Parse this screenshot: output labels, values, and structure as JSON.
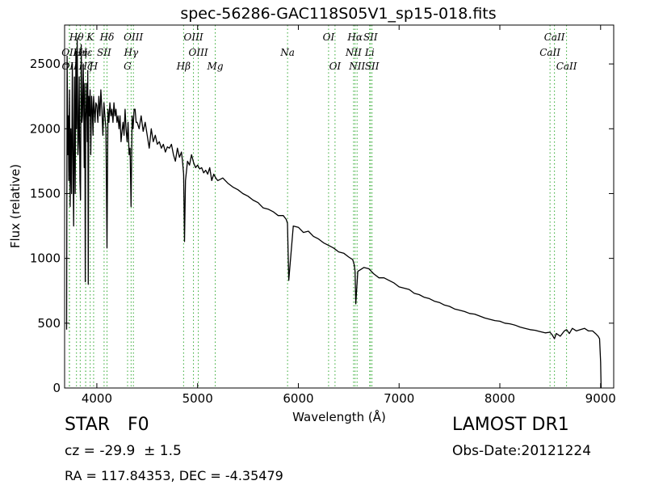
{
  "chart_data": {
    "type": "line",
    "title": "spec-56286-GAC118S05V1_sp15-018.fits",
    "xlabel": "Wavelength (Å)",
    "ylabel": "Flux (relative)",
    "xlim": [
      3680,
      9130
    ],
    "ylim": [
      0,
      2800
    ],
    "xticks": [
      4000,
      5000,
      6000,
      7000,
      8000,
      9000
    ],
    "yticks": [
      0,
      500,
      1000,
      1500,
      2000,
      2500
    ],
    "grid": false,
    "line_color": "#000000",
    "marker_color": "#33aa33",
    "series": [
      {
        "x": [
          3700,
          3705,
          3712,
          3718,
          3722,
          3728,
          3735,
          3742,
          3750,
          3757,
          3763,
          3770,
          3778,
          3785,
          3792,
          3798,
          3805,
          3812,
          3818,
          3825,
          3832,
          3838,
          3845,
          3852,
          3858,
          3865,
          3870,
          3875,
          3880,
          3885,
          3889,
          3895,
          3900,
          3905,
          3910,
          3915,
          3920,
          3926,
          3933,
          3940,
          3948,
          3955,
          3962,
          3968,
          3975,
          3982,
          3990,
          4000,
          4010,
          4020,
          4030,
          4040,
          4050,
          4060,
          4070,
          4080,
          4090,
          4101,
          4110,
          4120,
          4130,
          4140,
          4150,
          4160,
          4170,
          4180,
          4190,
          4200,
          4210,
          4220,
          4230,
          4240,
          4250,
          4260,
          4270,
          4280,
          4290,
          4300,
          4310,
          4320,
          4330,
          4340,
          4350,
          4360,
          4370,
          4380,
          4390,
          4400,
          4420,
          4440,
          4460,
          4480,
          4500,
          4520,
          4540,
          4560,
          4580,
          4600,
          4620,
          4640,
          4660,
          4680,
          4700,
          4720,
          4740,
          4760,
          4780,
          4800,
          4820,
          4840,
          4850,
          4861,
          4870,
          4880,
          4900,
          4920,
          4940,
          4960,
          4980,
          5000,
          5020,
          5040,
          5060,
          5080,
          5100,
          5120,
          5140,
          5160,
          5180,
          5200,
          5250,
          5300,
          5350,
          5400,
          5450,
          5500,
          5550,
          5600,
          5650,
          5700,
          5750,
          5800,
          5850,
          5880,
          5892,
          5905,
          5950,
          6000,
          6050,
          6100,
          6150,
          6200,
          6250,
          6300,
          6350,
          6400,
          6450,
          6500,
          6540,
          6555,
          6563,
          6570,
          6590,
          6650,
          6700,
          6750,
          6800,
          6850,
          6900,
          6950,
          7000,
          7050,
          7100,
          7150,
          7200,
          7250,
          7300,
          7350,
          7400,
          7450,
          7500,
          7550,
          7600,
          7650,
          7700,
          7750,
          7800,
          7850,
          7900,
          7950,
          8000,
          8050,
          8100,
          8150,
          8200,
          8250,
          8300,
          8350,
          8400,
          8450,
          8498,
          8520,
          8542,
          8560,
          8600,
          8640,
          8662,
          8690,
          8720,
          8760,
          8800,
          8840,
          8880,
          8920,
          8950,
          8975,
          8990,
          9000,
          9005
        ],
        "y": [
          450,
          2560,
          1800,
          2100,
          1600,
          2300,
          1400,
          2000,
          1500,
          2500,
          1800,
          1250,
          2400,
          1500,
          2600,
          2000,
          2700,
          1800,
          1900,
          2400,
          1600,
          1450,
          2650,
          2050,
          2100,
          2500,
          2200,
          1700,
          2350,
          820,
          2050,
          2200,
          2350,
          1900,
          2450,
          800,
          2250,
          2100,
          2300,
          1800,
          2250,
          2150,
          1950,
          2250,
          2150,
          2050,
          2200,
          2180,
          2050,
          2250,
          2100,
          2300,
          2150,
          1950,
          2200,
          2100,
          2000,
          1080,
          2150,
          2050,
          2200,
          2100,
          2150,
          2050,
          2200,
          2100,
          2150,
          2050,
          2100,
          2000,
          2100,
          1900,
          1980,
          2050,
          1950,
          2150,
          2000,
          1900,
          2050,
          1800,
          1850,
          1400,
          2100,
          2000,
          2150,
          2150,
          2050,
          2050,
          2000,
          2100,
          1980,
          2050,
          1950,
          1850,
          2000,
          1900,
          1950,
          1880,
          1900,
          1850,
          1880,
          1820,
          1860,
          1850,
          1880,
          1800,
          1750,
          1850,
          1780,
          1820,
          1750,
          1650,
          1130,
          1600,
          1750,
          1720,
          1800,
          1740,
          1700,
          1720,
          1690,
          1700,
          1660,
          1680,
          1650,
          1700,
          1600,
          1650,
          1620,
          1600,
          1620,
          1580,
          1550,
          1530,
          1500,
          1480,
          1450,
          1430,
          1390,
          1380,
          1360,
          1330,
          1330,
          1300,
          1270,
          830,
          1250,
          1240,
          1200,
          1210,
          1170,
          1150,
          1120,
          1100,
          1080,
          1050,
          1040,
          1010,
          990,
          950,
          900,
          650,
          900,
          930,
          920,
          880,
          850,
          850,
          830,
          810,
          780,
          770,
          760,
          730,
          720,
          700,
          690,
          670,
          660,
          640,
          630,
          610,
          600,
          590,
          575,
          570,
          555,
          540,
          530,
          520,
          515,
          500,
          495,
          485,
          470,
          460,
          450,
          445,
          435,
          425,
          430,
          410,
          380,
          420,
          400,
          440,
          450,
          420,
          460,
          440,
          450,
          460,
          440,
          440,
          420,
          400,
          380,
          200,
          0
        ]
      }
    ],
    "lines": [
      {
        "name": "Hθ",
        "w": 3798,
        "row": 0
      },
      {
        "name": "K",
        "w": 3934,
        "row": 0
      },
      {
        "name": "Hδ",
        "w": 4101,
        "row": 0
      },
      {
        "name": "OIII",
        "w": 4363,
        "row": 0
      },
      {
        "name": "OIII",
        "w": 4959,
        "row": 0
      },
      {
        "name": "OI",
        "w": 6300,
        "row": 0
      },
      {
        "name": "Hα",
        "w": 6563,
        "row": 0
      },
      {
        "name": "SII",
        "w": 6716,
        "row": 0
      },
      {
        "name": "CaII",
        "w": 8542,
        "row": 0
      },
      {
        "name": "OII",
        "w": 3727,
        "row": 1
      },
      {
        "name": "Hη",
        "w": 3835,
        "row": 1
      },
      {
        "name": "Hε",
        "w": 3889,
        "row": 1
      },
      {
        "name": "SII",
        "w": 4072,
        "row": 1
      },
      {
        "name": "Hγ",
        "w": 4340,
        "row": 1
      },
      {
        "name": "OIII",
        "w": 5007,
        "row": 1
      },
      {
        "name": "NII",
        "w": 6548,
        "row": 1
      },
      {
        "name": "Li",
        "w": 6708,
        "row": 1
      },
      {
        "name": "CaII",
        "w": 8498,
        "row": 1
      },
      {
        "name": "OII",
        "w": 3729,
        "row": 2
      },
      {
        "name": "Hζ",
        "w": 3889,
        "row": 2
      },
      {
        "name": "H",
        "w": 3968,
        "row": 2
      },
      {
        "name": "G",
        "w": 4305,
        "row": 2
      },
      {
        "name": "Hβ",
        "w": 4861,
        "row": 2
      },
      {
        "name": "Mg",
        "w": 5175,
        "row": 2
      },
      {
        "name": "Na",
        "w": 5893,
        "row": 1
      },
      {
        "name": "OI",
        "w": 6364,
        "row": 2
      },
      {
        "name": "NII",
        "w": 6583,
        "row": 2
      },
      {
        "name": "SII",
        "w": 6731,
        "row": 2
      },
      {
        "name": "CaII",
        "w": 8662,
        "row": 2
      }
    ]
  },
  "info": {
    "class": "STAR",
    "subclass": "F0",
    "cz": "cz = -29.9  ± 1.5",
    "radec": "RA = 117.84353, DEC = -4.35479",
    "survey": "LAMOST DR1",
    "obsdate": "Obs-Date:20121224"
  }
}
